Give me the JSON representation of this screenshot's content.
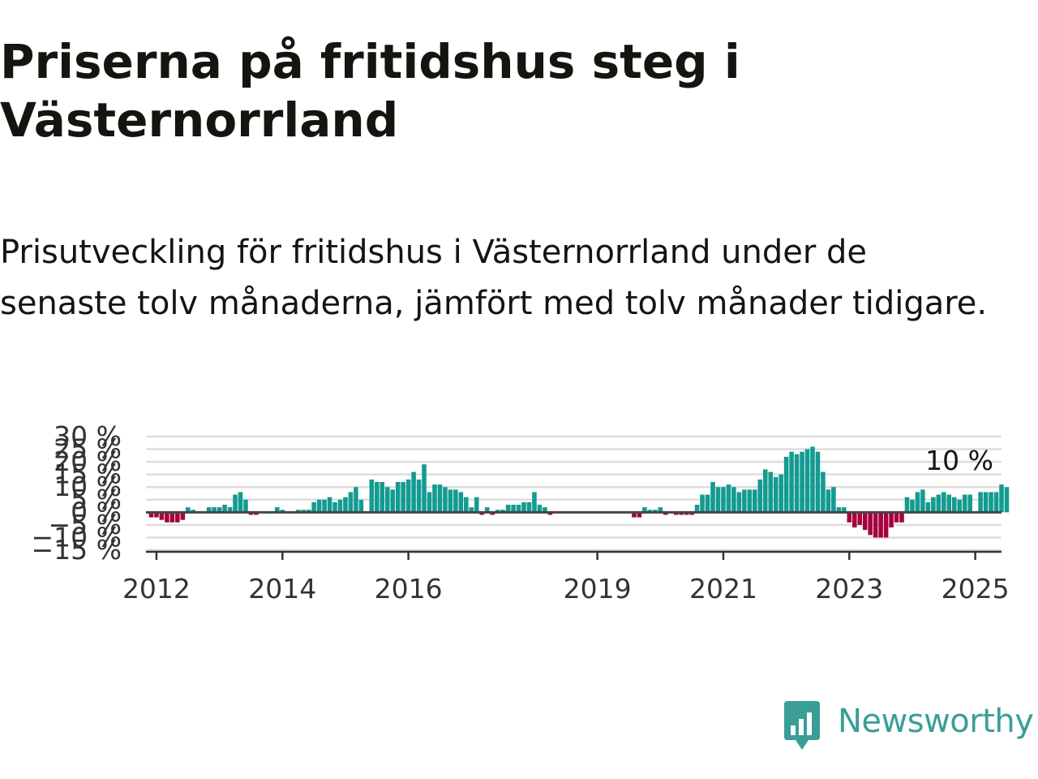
{
  "header": {
    "title": "Priserna på fritidshus steg i Västernorrland",
    "subtitle": "Prisutveckling för fritidshus i Västernorrland under de senaste tolv månaderna, jämfört med tolv månader tidigare."
  },
  "brand": {
    "name": "Newsworthy",
    "logo_icon": "bar-chart-speech-bubble-icon",
    "color": "#3a9e96"
  },
  "colors": {
    "positive": "#139b91",
    "negative": "#a6003e",
    "zero_line": "#444444",
    "grid": "#dddddd"
  },
  "chart_data": {
    "type": "bar",
    "title": "",
    "xlabel": "",
    "ylabel": "",
    "y_ticks": [
      30,
      25,
      20,
      15,
      10,
      5,
      0,
      -5,
      -10,
      -15
    ],
    "y_tick_labels": [
      "30 %",
      "25 %",
      "20 %",
      "15 %",
      "10 %",
      "5 %",
      "0 %",
      "−5 %",
      "−10 %",
      "−15 %"
    ],
    "ylim": [
      -15,
      30
    ],
    "x_tick_years": [
      2012,
      2014,
      2016,
      2019,
      2021,
      2023,
      2025
    ],
    "x_tick_labels": [
      "2012",
      "2014",
      "2016",
      "2019",
      "2021",
      "2023",
      "2025"
    ],
    "x_range": [
      "2011-11",
      "2025-06"
    ],
    "last_value_label": "10 %",
    "grid": true,
    "series": [
      {
        "start": "2011-12",
        "values": [
          -2,
          -2,
          -3,
          -4,
          -4,
          -4,
          -3,
          2,
          1,
          0,
          0,
          2,
          2,
          2,
          3,
          2,
          7,
          8,
          5,
          -1,
          -1,
          0,
          0,
          0,
          2,
          1,
          0,
          0,
          1,
          1,
          1,
          4,
          5,
          5,
          6,
          4,
          5,
          6,
          8,
          10,
          5,
          0,
          13,
          12,
          12,
          10,
          9,
          12,
          12,
          13,
          16,
          13,
          19,
          8,
          11,
          11,
          10,
          9,
          9,
          8,
          6,
          2,
          6,
          -1,
          2,
          -1,
          1,
          1,
          3,
          3,
          3,
          4,
          4,
          8,
          3,
          2,
          -1,
          0,
          0,
          0,
          0,
          0,
          0,
          0,
          0,
          0,
          0,
          0,
          0,
          0,
          0,
          0,
          -2,
          -2,
          2,
          1,
          1,
          2,
          -1,
          0,
          -1,
          -1,
          -1,
          -1,
          3,
          7,
          7,
          12,
          10,
          10,
          11,
          10,
          8,
          9,
          9,
          9,
          13,
          17,
          16,
          14,
          15,
          22,
          24,
          23,
          24,
          25,
          26,
          24,
          16,
          9,
          10,
          2,
          2,
          -4,
          -6,
          -5,
          -7,
          -9,
          -10,
          -10,
          -10,
          -6,
          -4,
          -4,
          6,
          5,
          8,
          9,
          4,
          6,
          7,
          8,
          7,
          6,
          5,
          7,
          7,
          0,
          8,
          8,
          8,
          8,
          11,
          10
        ]
      }
    ]
  }
}
